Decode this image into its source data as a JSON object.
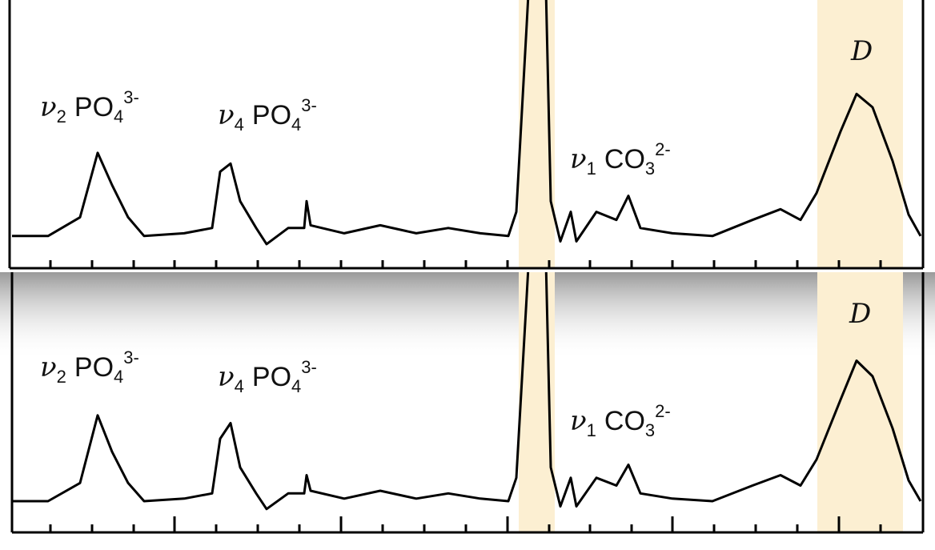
{
  "chart_data": [
    {
      "type": "line",
      "annotations": [
        {
          "symbol": "ν",
          "sub": "2",
          "species": "PO",
          "species_sub": "4",
          "charge": "3-"
        },
        {
          "symbol": "ν",
          "sub": "4",
          "species": "PO",
          "species_sub": "4",
          "charge": "3-"
        },
        {
          "symbol": "ν",
          "sub": "1",
          "species": "CO",
          "species_sub": "3",
          "charge": "2-"
        },
        {
          "symbol": "D"
        }
      ],
      "x": [
        0,
        45,
        85,
        107,
        125,
        145,
        165,
        215,
        250,
        260,
        273,
        285,
        305,
        318,
        345,
        365,
        368,
        373,
        415,
        460,
        505,
        545,
        585,
        620,
        630,
        643,
        650,
        665,
        673,
        685,
        698,
        705,
        730,
        755,
        770,
        785,
        825,
        875,
        925,
        960,
        985,
        1005,
        1035,
        1055,
        1075,
        1100,
        1120,
        1135
      ],
      "values": [
        12,
        12,
        19,
        43,
        31,
        19,
        12,
        13,
        15,
        36,
        39,
        25,
        15,
        9,
        15,
        15,
        25,
        16,
        13,
        16,
        13,
        15,
        13,
        12,
        21,
        91,
        130,
        130,
        25,
        10,
        21,
        10,
        21,
        18,
        27,
        15,
        13,
        12,
        18,
        22,
        18,
        28,
        51,
        65,
        60,
        40,
        20,
        12
      ],
      "color": "#000000",
      "bands": [
        [
          633,
          678
        ],
        [
          1006,
          1113
        ]
      ],
      "band_color": "#fcefd2",
      "xlim": [
        0,
        1135
      ],
      "ylim": [
        0,
        100
      ],
      "xticks": [
        203,
        411,
        619,
        825,
        1033
      ],
      "xminor": [
        48,
        100,
        152,
        255,
        307,
        359,
        463,
        515,
        567,
        671,
        722,
        774,
        877,
        929,
        981,
        1085
      ]
    },
    {
      "type": "line",
      "annotations": [
        {
          "symbol": "ν",
          "sub": "2",
          "species": "PO",
          "species_sub": "4",
          "charge": "3-"
        },
        {
          "symbol": "ν",
          "sub": "4",
          "species": "PO",
          "species_sub": "4",
          "charge": "3-"
        },
        {
          "symbol": "ν",
          "sub": "1",
          "species": "CO",
          "species_sub": "3",
          "charge": "2-"
        },
        {
          "symbol": "D"
        }
      ],
      "x": [
        0,
        45,
        85,
        107,
        125,
        145,
        165,
        215,
        250,
        260,
        273,
        285,
        305,
        318,
        345,
        365,
        368,
        373,
        415,
        460,
        505,
        545,
        585,
        620,
        630,
        643,
        650,
        665,
        673,
        685,
        698,
        705,
        730,
        755,
        770,
        785,
        825,
        875,
        925,
        960,
        985,
        1005,
        1035,
        1055,
        1075,
        1100,
        1120,
        1135
      ],
      "values": [
        12,
        12,
        19,
        45,
        31,
        19,
        12,
        13,
        15,
        36,
        42,
        25,
        15,
        9,
        15,
        15,
        22,
        16,
        13,
        16,
        13,
        15,
        13,
        12,
        21,
        91,
        130,
        130,
        25,
        10,
        21,
        10,
        21,
        18,
        26,
        15,
        13,
        12,
        18,
        22,
        18,
        28,
        51,
        66,
        60,
        40,
        20,
        12
      ],
      "color": "#000000",
      "bands": [
        [
          633,
          678
        ],
        [
          1006,
          1113
        ]
      ],
      "band_color": "#fcefd2",
      "xlim": [
        0,
        1135
      ],
      "ylim": [
        0,
        100
      ],
      "xticks": [
        203,
        411,
        619,
        825,
        1033
      ],
      "xminor": [
        48,
        100,
        152,
        255,
        307,
        359,
        463,
        515,
        567,
        671,
        722,
        774,
        877,
        929,
        981,
        1085
      ]
    }
  ]
}
